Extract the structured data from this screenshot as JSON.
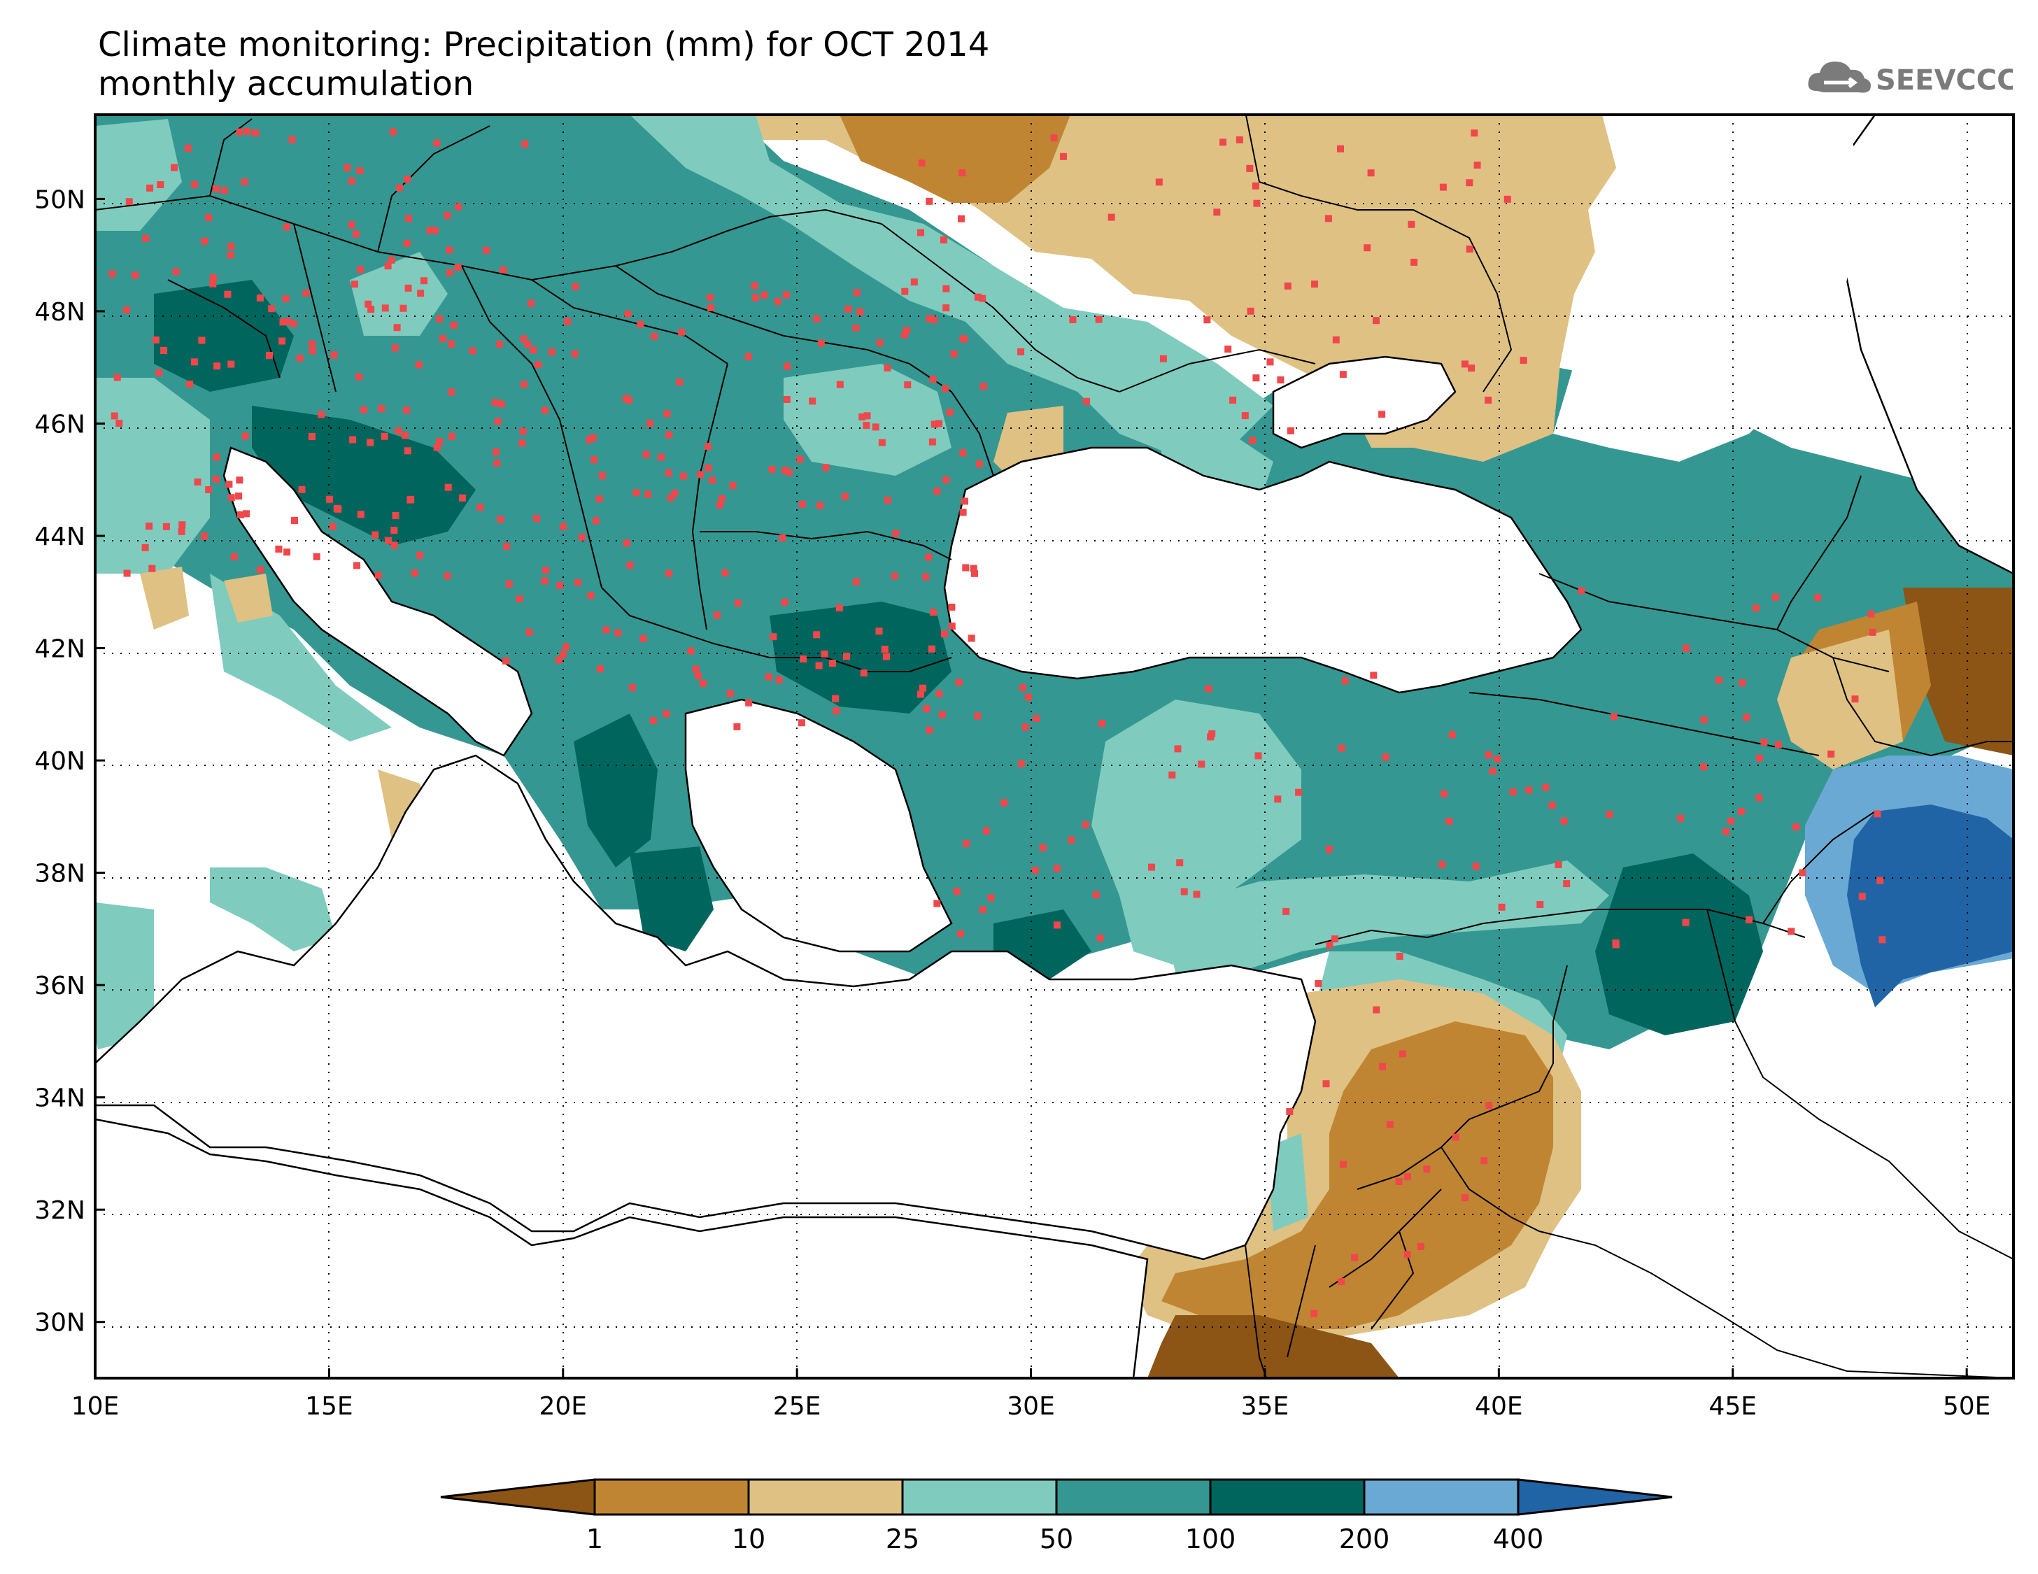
{
  "title": "Climate monitoring: Precipitation (mm) for OCT 2014",
  "subtitle": "monthly accumulation",
  "logo": {
    "text": "SEEVCCC",
    "icon": "cloud-icon"
  },
  "map": {
    "lon_range": [
      10,
      51
    ],
    "lat_range": [
      29,
      51.5
    ],
    "lon_ticks": [
      "10E",
      "15E",
      "20E",
      "25E",
      "30E",
      "35E",
      "40E",
      "45E",
      "50E"
    ],
    "lat_ticks": [
      "30N",
      "32N",
      "34N",
      "36N",
      "38N",
      "40N",
      "42N",
      "44N",
      "46N",
      "48N",
      "50N"
    ],
    "grid": "dotted"
  },
  "legend": {
    "labels": [
      "1",
      "10",
      "25",
      "50",
      "100",
      "200",
      "400"
    ],
    "colors": [
      "#8c5415",
      "#c08533",
      "#dfc183",
      "#7fccbf",
      "#359791",
      "#00655d",
      "#69a9d4",
      "#2164a6"
    ]
  },
  "colors": {
    "land_no_data": "#ffffff",
    "station": "#f0474b",
    "border": "#000000"
  }
}
